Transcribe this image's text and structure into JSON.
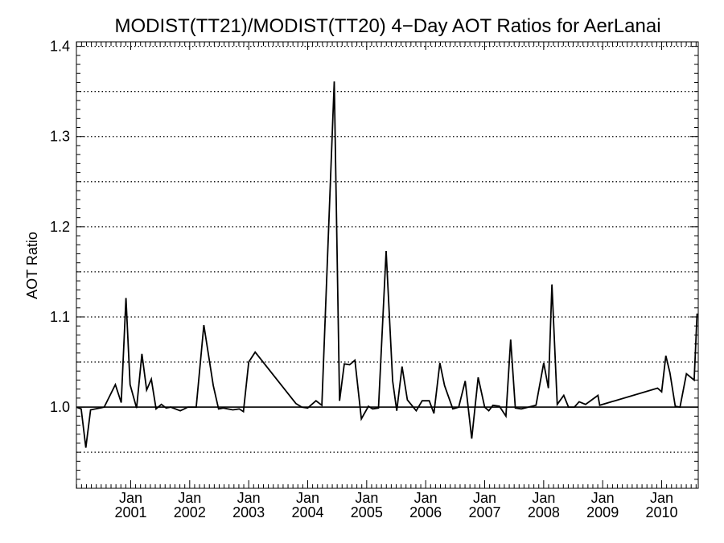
{
  "chart_data": {
    "type": "line",
    "title": "MODIST(TT21)/MODIST(TT20) 4−Day AOT Ratios for AerLanai",
    "xlabel": "",
    "ylabel": "AOT Ratio",
    "x_ticks": [
      {
        "month": "Jan",
        "year": "2001",
        "x": 2001.0
      },
      {
        "month": "Jan",
        "year": "2002",
        "x": 2002.0
      },
      {
        "month": "Jan",
        "year": "2003",
        "x": 2003.0
      },
      {
        "month": "Jan",
        "year": "2004",
        "x": 2004.0
      },
      {
        "month": "Jan",
        "year": "2005",
        "x": 2005.0
      },
      {
        "month": "Jan",
        "year": "2006",
        "x": 2006.0
      },
      {
        "month": "Jan",
        "year": "2007",
        "x": 2007.0
      },
      {
        "month": "Jan",
        "year": "2008",
        "x": 2008.0
      },
      {
        "month": "Jan",
        "year": "2009",
        "x": 2009.0
      },
      {
        "month": "Jan",
        "year": "2010",
        "x": 2010.0
      }
    ],
    "y_ticks": [
      "1.0",
      "1.1",
      "1.2",
      "1.3",
      "1.4"
    ],
    "y_tick_values": [
      1.0,
      1.1,
      1.2,
      1.3,
      1.4
    ],
    "xlim": [
      2000.08,
      2010.62
    ],
    "ylim": [
      0.91,
      1.405
    ],
    "grid": "dotted horizontal lines every 0.05",
    "reference_line": 1.0,
    "series": [
      {
        "x": [
          2000.08,
          2000.16,
          2000.24,
          2000.32,
          2000.55,
          2000.74,
          2000.84,
          2000.92,
          2000.99,
          2001.1,
          2001.19,
          2001.27,
          2001.35,
          2001.43,
          2001.52,
          2001.6,
          2001.68,
          2001.84,
          2001.97,
          2002.11,
          2002.24,
          2002.4,
          2002.49,
          2002.57,
          2002.73,
          2002.84,
          2002.91,
          2003.0,
          2003.11,
          2003.8,
          2003.9,
          2004.0,
          2004.14,
          2004.24,
          2004.45,
          2004.54,
          2004.62,
          2004.71,
          2004.8,
          2004.91,
          2005.03,
          2005.1,
          2005.2,
          2005.33,
          2005.44,
          2005.51,
          2005.6,
          2005.69,
          2005.84,
          2005.94,
          2006.06,
          2006.14,
          2006.24,
          2006.32,
          2006.46,
          2006.56,
          2006.67,
          2006.78,
          2006.89,
          2007.0,
          2007.07,
          2007.14,
          2007.25,
          2007.36,
          2007.44,
          2007.52,
          2007.62,
          2007.74,
          2007.87,
          2008.0,
          2008.08,
          2008.14,
          2008.23,
          2008.34,
          2008.42,
          2008.52,
          2008.6,
          2008.71,
          2008.92,
          2008.95,
          2009.93,
          2010.0,
          2010.07,
          2010.14,
          2010.23,
          2010.31,
          2010.42,
          2010.55,
          2010.6,
          2010.62
        ],
        "y": [
          1.0,
          0.998,
          0.955,
          0.997,
          1.0,
          1.025,
          1.005,
          1.121,
          1.025,
          0.999,
          1.059,
          1.019,
          1.031,
          0.998,
          1.003,
          0.999,
          1.0,
          0.996,
          1.0,
          1.0,
          1.091,
          1.024,
          0.998,
          0.999,
          0.997,
          0.998,
          0.995,
          1.05,
          1.061,
          1.004,
          1.0,
          0.999,
          1.007,
          1.002,
          1.361,
          1.007,
          1.048,
          1.047,
          1.052,
          0.987,
          1.001,
          0.998,
          0.999,
          1.173,
          1.029,
          0.996,
          1.045,
          1.008,
          0.996,
          1.007,
          1.007,
          0.993,
          1.049,
          1.024,
          0.998,
          1.0,
          1.029,
          0.965,
          1.033,
          1.0,
          0.996,
          1.002,
          1.001,
          0.99,
          1.075,
          0.999,
          0.998,
          1.0,
          1.002,
          1.049,
          1.021,
          1.136,
          1.003,
          1.013,
          1.0,
          1.0,
          1.006,
          1.003,
          1.013,
          1.002,
          1.021,
          1.017,
          1.057,
          1.038,
          1.001,
          1.0,
          1.037,
          1.03,
          1.103,
          1.103
        ]
      }
    ],
    "colors": {
      "line": "#000000",
      "background": "#ffffff",
      "axes": "#000000"
    }
  }
}
